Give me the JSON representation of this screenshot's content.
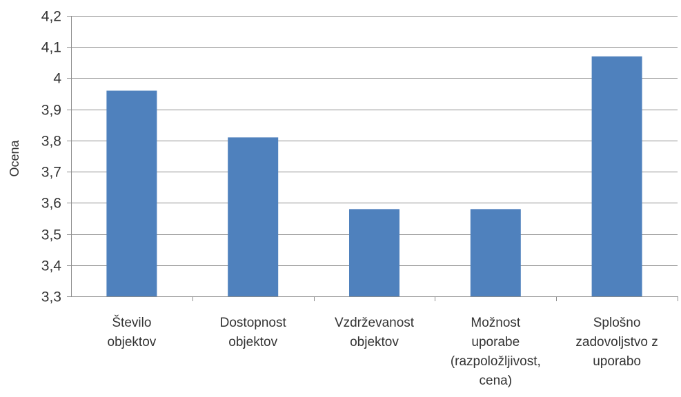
{
  "chart_data": {
    "type": "bar",
    "ylabel": "Ocena",
    "ylim": [
      3.3,
      4.2
    ],
    "ytick_step": 0.1,
    "y_tick_labels": [
      "3,3",
      "3,4",
      "3,5",
      "3,6",
      "3,7",
      "3,8",
      "3,9",
      "4",
      "4,1",
      "4,2"
    ],
    "grid": true,
    "categories": [
      [
        "Število",
        "objektov"
      ],
      [
        "Dostopnost",
        "objektov"
      ],
      [
        "Vzdrževanost",
        "objektov"
      ],
      [
        "Možnost",
        "uporabe",
        "(razpoložljivost,",
        "cena)"
      ],
      [
        "Splošno",
        "zadovoljstvo z",
        "uporabo"
      ]
    ],
    "values": [
      3.96,
      3.81,
      3.58,
      3.58,
      4.07
    ],
    "colors": {
      "bar": "#4F81BD",
      "grid": "#8c8c8c",
      "axis": "#8c8c8c"
    }
  }
}
